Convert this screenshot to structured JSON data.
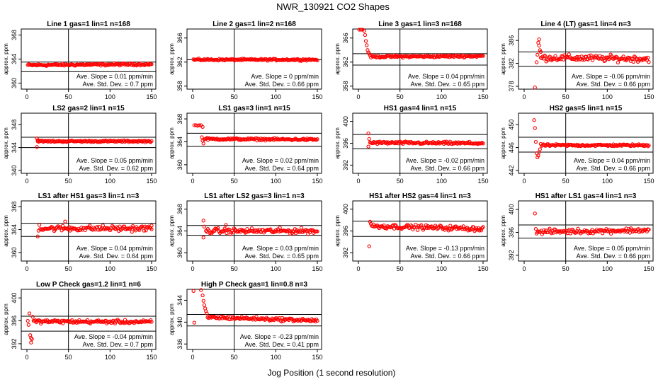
{
  "figure": {
    "title": "NWR_130921  CO2 Shapes",
    "xlabel": "Jog Position (1 second resolution)",
    "ylabel": "approx. ppm"
  },
  "chart_data": [
    {
      "type": "scatter",
      "title": "Line 1 gas=1 lin=1 n=168",
      "xlim": [
        0,
        150
      ],
      "ylim": [
        359,
        369
      ],
      "yticks": [
        360,
        364,
        368
      ],
      "xticks": [
        0,
        50,
        100,
        150
      ],
      "hlines": [
        363.5,
        361.9
      ],
      "vline": 50,
      "slope": "0.01",
      "sd": "0.7",
      "color": "#ff0000",
      "segments": [
        {
          "x0": 1,
          "x1": 150,
          "y0": 363.0,
          "y1": 363.15,
          "n": 140,
          "noise": 0.15
        }
      ],
      "extra": []
    },
    {
      "type": "scatter",
      "title": "Line 2 gas=1 lin=2 n=168",
      "xlim": [
        0,
        150
      ],
      "ylim": [
        357.5,
        367.5
      ],
      "yticks": [
        358,
        362,
        366
      ],
      "xticks": [
        0,
        50,
        100,
        150
      ],
      "hlines": [
        362.4
      ],
      "vline": 50,
      "slope": "0",
      "sd": "0.66",
      "color": "#ff0000",
      "segments": [
        {
          "x0": 1,
          "x1": 150,
          "y0": 362.4,
          "y1": 362.4,
          "n": 140,
          "noise": 0.12
        }
      ],
      "extra": []
    },
    {
      "type": "scatter",
      "title": "Line 3 gas=1 lin=3 n=168",
      "xlim": [
        0,
        150
      ],
      "ylim": [
        357.5,
        367.5
      ],
      "yticks": [
        358,
        362,
        366
      ],
      "xticks": [
        0,
        50,
        100,
        150
      ],
      "hlines": [
        363.4,
        361.5
      ],
      "vline": 50,
      "slope": "0.04",
      "sd": "0.65",
      "color": "#ff0000",
      "segments": [
        {
          "x0": 14,
          "x1": 150,
          "y0": 362.9,
          "y1": 363.0,
          "n": 125,
          "noise": 0.15
        }
      ],
      "extra": [
        [
          1,
          367.6
        ],
        [
          3,
          367.4
        ],
        [
          5,
          367.4
        ],
        [
          7,
          367.2
        ],
        [
          8,
          366.5
        ],
        [
          9,
          365.5
        ],
        [
          10,
          364.8
        ],
        [
          11,
          364.0
        ],
        [
          12,
          363.6
        ],
        [
          13,
          363.4
        ]
      ]
    },
    {
      "type": "scatter",
      "title": "Line 4 (LT) gas=1 lin=4 n=3",
      "xlim": [
        0,
        150
      ],
      "ylim": [
        377.5,
        388
      ],
      "yticks": [
        378,
        382,
        386
      ],
      "xticks": [
        0,
        50,
        100,
        150
      ],
      "hlines": [
        384.0,
        381.5
      ],
      "vline": 50,
      "slope": "-0.06",
      "sd": "0.66",
      "color": "#ff0000",
      "segments": [
        {
          "x0": 20,
          "x1": 150,
          "y0": 383.0,
          "y1": 382.8,
          "n": 120,
          "noise": 0.45
        }
      ],
      "extra": [
        [
          13,
          377.8
        ],
        [
          15,
          382.2
        ],
        [
          16,
          383.5
        ],
        [
          17,
          385.6
        ],
        [
          18,
          386.2
        ],
        [
          18,
          385.1
        ],
        [
          19,
          384.3
        ],
        [
          20,
          384.0
        ]
      ]
    },
    {
      "type": "scatter",
      "title": "LS2 gas=2 lin=1 n=15",
      "xlim": [
        0,
        150
      ],
      "ylim": [
        339.5,
        350
      ],
      "yticks": [
        340,
        344,
        348
      ],
      "xticks": [
        0,
        50,
        100,
        150
      ],
      "hlines": [
        345.8,
        344.0
      ],
      "vline": 50,
      "slope": "0.05",
      "sd": "0.62",
      "color": "#ff0000",
      "segments": [
        {
          "x0": 13,
          "x1": 150,
          "y0": 345.1,
          "y1": 345.1,
          "n": 125,
          "noise": 0.12
        }
      ],
      "extra": [
        [
          12,
          345.6
        ],
        [
          12,
          344.1
        ],
        [
          13,
          345.3
        ]
      ]
    },
    {
      "type": "scatter",
      "title": "LS1 gas=3 lin=1 n=15",
      "xlim": [
        0,
        150
      ],
      "ylim": [
        358.5,
        369
      ],
      "yticks": [
        360,
        364,
        368
      ],
      "xticks": [
        0,
        50,
        100,
        150
      ],
      "hlines": [
        365.5,
        363.2
      ],
      "vline": 50,
      "slope": "0.02",
      "sd": "0.64",
      "color": "#ff0000",
      "segments": [
        {
          "x0": 14,
          "x1": 150,
          "y0": 364.5,
          "y1": 364.4,
          "n": 125,
          "noise": 0.15
        }
      ],
      "extra": [
        [
          2,
          366.9
        ],
        [
          4,
          366.9
        ],
        [
          6,
          366.8
        ],
        [
          8,
          366.9
        ],
        [
          10,
          366.9
        ],
        [
          12,
          366.6
        ],
        [
          11,
          364.8
        ],
        [
          12,
          364.2
        ],
        [
          13,
          363.7
        ]
      ]
    },
    {
      "type": "scatter",
      "title": "HS1 gas=4 lin=1 n=15",
      "xlim": [
        0,
        150
      ],
      "ylim": [
        390.5,
        401.5
      ],
      "yticks": [
        392,
        396,
        400
      ],
      "xticks": [
        0,
        50,
        100,
        150
      ],
      "hlines": [
        397.6,
        395.0
      ],
      "vline": 50,
      "slope": "-0.02",
      "sd": "0.66",
      "color": "#ff0000",
      "segments": [
        {
          "x0": 14,
          "x1": 150,
          "y0": 396.1,
          "y1": 396.0,
          "n": 125,
          "noise": 0.2
        }
      ],
      "extra": [
        [
          12,
          397.8
        ],
        [
          12,
          395.4
        ],
        [
          13,
          396.8
        ]
      ]
    },
    {
      "type": "scatter",
      "title": "HS2 gas=5 lin=1 n=15",
      "xlim": [
        0,
        150
      ],
      "ylim": [
        441.5,
        452
      ],
      "yticks": [
        442,
        446,
        450
      ],
      "xticks": [
        0,
        50,
        100,
        150
      ],
      "hlines": [
        447.8,
        445.2
      ],
      "vline": 50,
      "slope": "0.04",
      "sd": "0.66",
      "color": "#ff0000",
      "segments": [
        {
          "x0": 20,
          "x1": 150,
          "y0": 446.4,
          "y1": 446.4,
          "n": 120,
          "noise": 0.15
        }
      ],
      "extra": [
        [
          12,
          450.8
        ],
        [
          13,
          449.4
        ],
        [
          14,
          447.0
        ],
        [
          15,
          445.0
        ],
        [
          16,
          444.3
        ],
        [
          17,
          444.6
        ],
        [
          18,
          445.2
        ],
        [
          19,
          445.7
        ]
      ]
    },
    {
      "type": "scatter",
      "title": "LS1 after HS1 gas=3 lin=1 n=3",
      "xlim": [
        0,
        150
      ],
      "ylim": [
        358.5,
        369
      ],
      "yticks": [
        360,
        364,
        368
      ],
      "xticks": [
        0,
        50,
        100,
        150
      ],
      "hlines": [
        365.1,
        362.8
      ],
      "vline": 50,
      "slope": "0.04",
      "sd": "0.64",
      "color": "#ff0000",
      "segments": [
        {
          "x0": 16,
          "x1": 150,
          "y0": 364.2,
          "y1": 364.2,
          "n": 120,
          "noise": 0.4
        }
      ],
      "extra": [
        [
          13,
          362.8
        ],
        [
          14,
          363.8
        ],
        [
          15,
          364.8
        ],
        [
          46,
          365.4
        ],
        [
          150,
          364.7
        ]
      ]
    },
    {
      "type": "scatter",
      "title": "LS1 after LS2 gas=3 lin=1 n=3",
      "xlim": [
        0,
        150
      ],
      "ylim": [
        358.5,
        369.5
      ],
      "yticks": [
        360,
        364,
        368
      ],
      "xticks": [
        0,
        50,
        100,
        150
      ],
      "hlines": [
        365.0,
        363.2
      ],
      "vline": 50,
      "slope": "0.03",
      "sd": "0.65",
      "color": "#ff0000",
      "segments": [
        {
          "x0": 16,
          "x1": 150,
          "y0": 364.0,
          "y1": 364.0,
          "n": 120,
          "noise": 0.4
        }
      ],
      "extra": [
        [
          13,
          362.8
        ],
        [
          13,
          365.9
        ],
        [
          14,
          364.8
        ],
        [
          40,
          365.1
        ]
      ]
    },
    {
      "type": "scatter",
      "title": "HS1 after HS2 gas=4 lin=1 n=3",
      "xlim": [
        0,
        150
      ],
      "ylim": [
        390.5,
        401.5
      ],
      "yticks": [
        392,
        396,
        400
      ],
      "xticks": [
        0,
        50,
        100,
        150
      ],
      "hlines": [
        397.8,
        395.0
      ],
      "vline": 50,
      "slope": "-0.13",
      "sd": "0.66",
      "color": "#ff0000",
      "segments": [
        {
          "x0": 16,
          "x1": 150,
          "y0": 396.9,
          "y1": 396.4,
          "n": 120,
          "noise": 0.35
        }
      ],
      "extra": [
        [
          13,
          393.2
        ],
        [
          14,
          397.7
        ],
        [
          15,
          397.3
        ]
      ]
    },
    {
      "type": "scatter",
      "title": "HS1 after LS1 gas=4 lin=1 n=3",
      "xlim": [
        0,
        150
      ],
      "ylim": [
        391,
        401.5
      ],
      "yticks": [
        392,
        396,
        400
      ],
      "xticks": [
        0,
        50,
        100,
        150
      ],
      "hlines": [
        397.3,
        395.0
      ],
      "vline": 50,
      "slope": "0.05",
      "sd": "0.66",
      "color": "#ff0000",
      "segments": [
        {
          "x0": 17,
          "x1": 150,
          "y0": 396.1,
          "y1": 396.4,
          "n": 118,
          "noise": 0.35
        }
      ],
      "extra": [
        [
          13,
          399.3
        ],
        [
          14,
          396.6
        ],
        [
          15,
          395.8
        ],
        [
          16,
          396.0
        ]
      ]
    },
    {
      "type": "scatter",
      "title": "Low P Check gas=1.2 lin=1 n=6",
      "xlim": [
        0,
        150
      ],
      "ylim": [
        391,
        401.5
      ],
      "yticks": [
        392,
        396,
        400
      ],
      "xticks": [
        0,
        50,
        100,
        150
      ],
      "hlines": [
        396.8,
        394.2
      ],
      "vline": 50,
      "slope": "-0.04",
      "sd": "0.7",
      "color": "#ff0000",
      "segments": [
        {
          "x0": 8,
          "x1": 150,
          "y0": 395.9,
          "y1": 395.8,
          "n": 130,
          "noise": 0.25
        }
      ],
      "extra": [
        [
          1,
          396.0
        ],
        [
          2,
          395.3
        ],
        [
          3,
          397.3
        ],
        [
          4,
          393.5
        ],
        [
          5,
          392.2
        ],
        [
          5,
          393.0
        ],
        [
          6,
          392.8
        ],
        [
          7,
          396.7
        ]
      ]
    },
    {
      "type": "scatter",
      "title": "High P Check gas=1 lin=0.8 n=3",
      "xlim": [
        0,
        150
      ],
      "ylim": [
        335,
        346
      ],
      "yticks": [
        336,
        340,
        344
      ],
      "xticks": [
        0,
        50,
        100,
        150
      ],
      "hlines": [
        341.4,
        339.3
      ],
      "vline": 50,
      "slope": "-0.23",
      "sd": "0.41",
      "color": "#ff0000",
      "segments": [
        {
          "x0": 18,
          "x1": 150,
          "y0": 340.9,
          "y1": 340.3,
          "n": 120,
          "noise": 0.25
        }
      ],
      "extra": [
        [
          1,
          345.7
        ],
        [
          2,
          339.9
        ],
        [
          10,
          345.9
        ],
        [
          12,
          344.9
        ],
        [
          13,
          343.9
        ],
        [
          14,
          343.1
        ],
        [
          15,
          342.5
        ],
        [
          16,
          342.0
        ],
        [
          17,
          341.6
        ]
      ]
    }
  ]
}
